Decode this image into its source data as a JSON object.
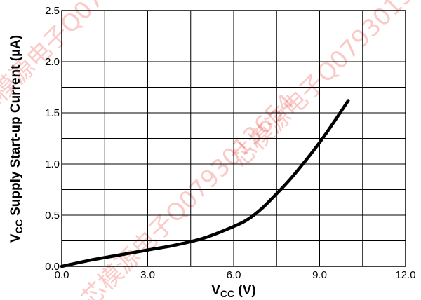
{
  "chart_data": {
    "type": "line",
    "xlabel_main": "V",
    "xlabel_sub": "CC",
    "xlabel_unit": " (V)",
    "ylabel_main": "V",
    "ylabel_sub": "CC",
    "ylabel_rest": " Supply Start-up Current (µA)",
    "xlim": [
      0,
      12
    ],
    "ylim": [
      0,
      2.5
    ],
    "x_ticks": [
      "0.0",
      "3.0",
      "6.0",
      "9.0",
      "12.0"
    ],
    "x_tick_values": [
      0,
      3,
      6,
      9,
      12
    ],
    "y_ticks": [
      "0.0",
      "0.5",
      "1.0",
      "1.5",
      "2.0",
      "2.5"
    ],
    "y_tick_values": [
      0,
      0.5,
      1.0,
      1.5,
      2.0,
      2.5
    ],
    "grid": true,
    "series": [
      {
        "x": [
          0,
          1,
          2,
          3,
          4,
          5,
          6,
          6.5,
          7,
          7.5,
          8,
          8.5,
          9,
          9.5,
          10.0
        ],
        "y": [
          0,
          0.06,
          0.11,
          0.16,
          0.21,
          0.28,
          0.39,
          0.46,
          0.57,
          0.71,
          0.86,
          1.03,
          1.21,
          1.41,
          1.62
        ]
      }
    ]
  },
  "watermarks": [
    "芯模源电子Q0793013654",
    "芯模源电子Q0793013654",
    "芯模源电子Q0793013654"
  ],
  "colors": {
    "watermark": "#e9413a",
    "line": "#000000"
  }
}
